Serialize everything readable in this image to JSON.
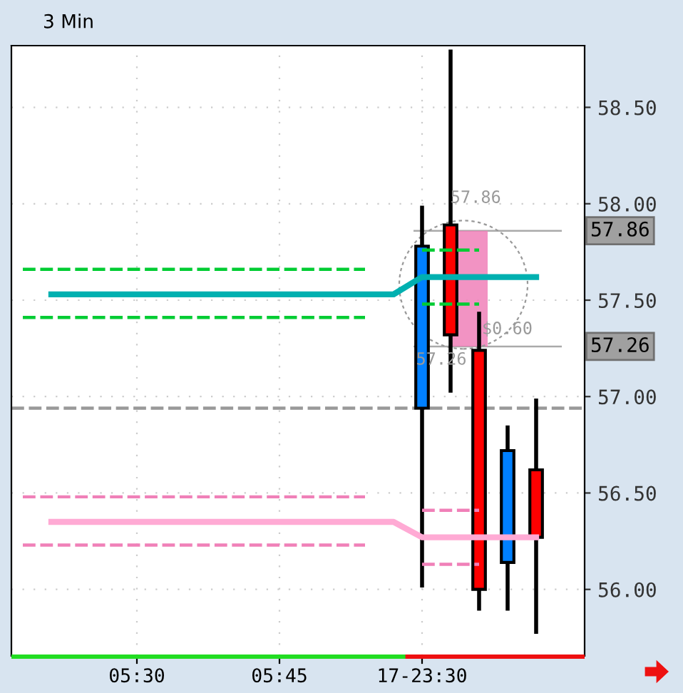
{
  "chart_data": {
    "type": "candlestick",
    "title": "3 Min",
    "categories": [
      null,
      null,
      null,
      null,
      "05:30",
      null,
      null,
      null,
      null,
      "05:45",
      null,
      null,
      null,
      null,
      "17-23:30",
      null,
      null,
      null,
      null,
      null
    ],
    "ohlc": [
      null,
      null,
      null,
      null,
      null,
      null,
      null,
      null,
      null,
      null,
      null,
      null,
      null,
      null,
      [
        56.94,
        57.99,
        56.01,
        57.78
      ],
      [
        57.89,
        58.8,
        57.02,
        57.32
      ],
      [
        57.24,
        57.44,
        55.89,
        56.0
      ],
      [
        56.14,
        56.85,
        55.89,
        56.72
      ],
      [
        56.62,
        56.99,
        55.77,
        56.27
      ],
      null
    ],
    "colors": [
      null,
      null,
      null,
      null,
      null,
      null,
      null,
      null,
      null,
      null,
      null,
      null,
      null,
      null,
      "#0080ff",
      "#ff0000",
      "#ff0000",
      "#0080ff",
      "#ff0000",
      null
    ],
    "series": [
      {
        "type": "line",
        "color": "#00b0b0",
        "line_style": "solid",
        "values": [
          null,
          57.53,
          57.53,
          57.53,
          57.53,
          57.53,
          57.53,
          57.53,
          57.53,
          57.53,
          57.53,
          57.53,
          57.53,
          57.53,
          57.62,
          57.62,
          57.62,
          57.62,
          57.62,
          null
        ]
      },
      {
        "type": "line",
        "color": "#00cc33",
        "line_style": "dashed",
        "values": [
          57.66,
          57.66,
          57.66,
          57.66,
          57.66,
          57.66,
          57.66,
          57.66,
          57.66,
          57.66,
          57.66,
          57.66,
          57.66,
          null,
          null,
          null,
          null,
          null,
          null,
          null
        ]
      },
      {
        "type": "line",
        "color": "#00cc33",
        "line_style": "dashed",
        "values": [
          null,
          null,
          null,
          null,
          null,
          null,
          null,
          null,
          null,
          null,
          null,
          null,
          null,
          null,
          57.76,
          57.76,
          57.76,
          null,
          null,
          null
        ]
      },
      {
        "type": "line",
        "color": "#00cc33",
        "line_style": "dashed",
        "values": [
          57.41,
          57.41,
          57.41,
          57.41,
          57.41,
          57.41,
          57.41,
          57.41,
          57.41,
          57.41,
          57.41,
          57.41,
          57.41,
          null,
          null,
          null,
          null,
          null,
          null,
          null
        ]
      },
      {
        "type": "line",
        "color": "#00cc33",
        "line_style": "dashed",
        "values": [
          null,
          null,
          null,
          null,
          null,
          null,
          null,
          null,
          null,
          null,
          null,
          null,
          null,
          null,
          57.48,
          57.48,
          57.48,
          null,
          null,
          null
        ]
      },
      {
        "type": "line",
        "color": "#ffaad4",
        "line_style": "solid",
        "values": [
          null,
          56.35,
          56.35,
          56.35,
          56.35,
          56.35,
          56.35,
          56.35,
          56.35,
          56.35,
          56.35,
          56.35,
          56.35,
          56.35,
          56.27,
          56.27,
          56.27,
          56.27,
          56.27,
          null
        ]
      },
      {
        "type": "line",
        "color": "#f080b8",
        "line_style": "dashed",
        "values": [
          56.48,
          56.48,
          56.48,
          56.48,
          56.48,
          56.48,
          56.48,
          56.48,
          56.48,
          56.48,
          56.48,
          56.48,
          56.48,
          null,
          null,
          null,
          null,
          null,
          null,
          null
        ]
      },
      {
        "type": "line",
        "color": "#f080b8",
        "line_style": "dashed",
        "values": [
          null,
          null,
          null,
          null,
          null,
          null,
          null,
          null,
          null,
          null,
          null,
          null,
          null,
          null,
          56.41,
          56.41,
          56.41,
          null,
          null,
          null
        ]
      },
      {
        "type": "line",
        "color": "#f080b8",
        "line_style": "dashed",
        "values": [
          56.23,
          56.23,
          56.23,
          56.23,
          56.23,
          56.23,
          56.23,
          56.23,
          56.23,
          56.23,
          56.23,
          56.23,
          56.23,
          null,
          null,
          null,
          null,
          null,
          null,
          null
        ]
      },
      {
        "type": "line",
        "color": "#f080b8",
        "line_style": "dashed",
        "values": [
          null,
          null,
          null,
          null,
          null,
          null,
          null,
          null,
          null,
          null,
          null,
          null,
          null,
          null,
          56.13,
          56.13,
          56.13,
          null,
          null,
          null
        ]
      }
    ],
    "ref_lines": [
      {
        "axis": "y",
        "value": 56.94,
        "color": "#999999",
        "line_style": "dashed"
      },
      {
        "axis": "y",
        "value": 57.86,
        "label": "57.86",
        "color": "#aaaaaa",
        "line_style": "solid"
      },
      {
        "axis": "y",
        "value": 57.26,
        "label": "57.26",
        "color": "#aaaaaa",
        "line_style": "solid"
      }
    ],
    "annotations": [
      "57.86",
      "57.26",
      "$0.60"
    ],
    "ylim": [
      55.655,
      58.82
    ],
    "yticks": [
      {
        "value": 56,
        "label": "56.00"
      },
      {
        "value": 56.5,
        "label": "56.50"
      },
      {
        "value": 57,
        "label": "57.00"
      },
      {
        "value": 57.5,
        "label": "57.50"
      },
      {
        "value": 58,
        "label": "58.00"
      },
      {
        "value": 58.5,
        "label": "58.50"
      }
    ],
    "grid": true
  }
}
